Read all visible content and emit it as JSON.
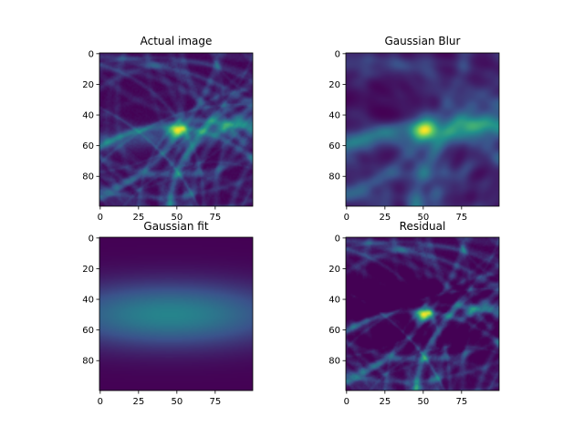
{
  "chart_data": [
    {
      "type": "heatmap",
      "title": "Actual image",
      "image_kind": "actual",
      "xlim": [
        0,
        99
      ],
      "ylim": [
        99,
        0
      ],
      "xticks": [
        0,
        25,
        50,
        75
      ],
      "yticks": [
        0,
        20,
        40,
        60,
        80
      ],
      "xtick_labels": [
        "0",
        "25",
        "50",
        "75"
      ],
      "ytick_labels": [
        "0",
        "20",
        "40",
        "60",
        "80"
      ],
      "colormap": [
        "#440154",
        "#3b528b",
        "#21918c",
        "#5ec962",
        "#fde725"
      ],
      "hotspot": {
        "x": 50,
        "y": 50
      }
    },
    {
      "type": "heatmap",
      "title": "Gaussian Blur",
      "image_kind": "blur",
      "xlim": [
        0,
        99
      ],
      "ylim": [
        99,
        0
      ],
      "xticks": [
        0,
        25,
        50,
        75
      ],
      "yticks": [
        0,
        20,
        40,
        60,
        80
      ],
      "xtick_labels": [
        "0",
        "25",
        "50",
        "75"
      ],
      "ytick_labels": [
        "0",
        "20",
        "40",
        "60",
        "80"
      ],
      "colormap": [
        "#440154",
        "#3b528b",
        "#21918c",
        "#5ec962",
        "#fde725"
      ],
      "hotspot": {
        "x": 50,
        "y": 50
      }
    },
    {
      "type": "heatmap",
      "title": "Gaussian fit",
      "image_kind": "fit",
      "xlim": [
        0,
        99
      ],
      "ylim": [
        99,
        0
      ],
      "xticks": [
        0,
        25,
        50,
        75
      ],
      "yticks": [
        0,
        20,
        40,
        60,
        80
      ],
      "xtick_labels": [
        "0",
        "25",
        "50",
        "75"
      ],
      "ytick_labels": [
        "0",
        "20",
        "40",
        "60",
        "80"
      ],
      "colormap": [
        "#440154",
        "#3b528b",
        "#21918c",
        "#5ec962",
        "#fde725"
      ],
      "hotspot": {
        "x": 45,
        "y": 50
      }
    },
    {
      "type": "heatmap",
      "title": "Residual",
      "image_kind": "residual",
      "xlim": [
        0,
        99
      ],
      "ylim": [
        99,
        0
      ],
      "xticks": [
        0,
        25,
        50,
        75
      ],
      "yticks": [
        0,
        20,
        40,
        60,
        80
      ],
      "xtick_labels": [
        "0",
        "25",
        "50",
        "75"
      ],
      "ytick_labels": [
        "0",
        "20",
        "40",
        "60",
        "80"
      ],
      "colormap": [
        "#440154",
        "#3b528b",
        "#21918c",
        "#5ec962",
        "#fde725"
      ],
      "hotspot": {
        "x": 50,
        "y": 50
      }
    }
  ]
}
